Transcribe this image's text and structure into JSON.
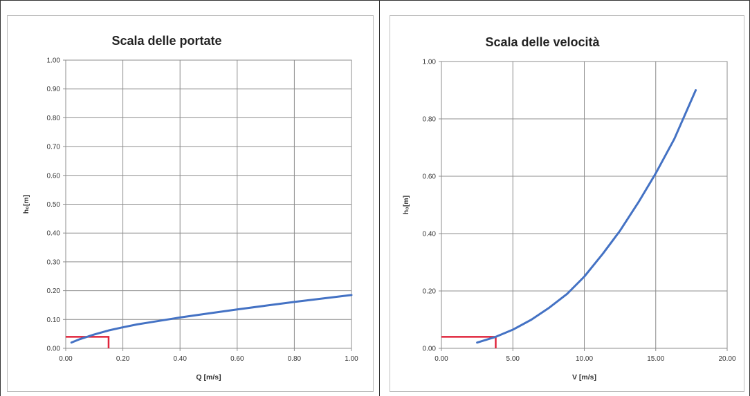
{
  "chart_data": [
    {
      "type": "line",
      "title": "Scala delle portate",
      "xlabel": "Q [m/s]",
      "ylabel": "h₀[m]",
      "xlim": [
        0,
        1.0
      ],
      "ylim": [
        0,
        1.0
      ],
      "xticks": [
        "0.00",
        "0.20",
        "0.40",
        "0.60",
        "0.80",
        "1.00"
      ],
      "yticks": [
        "0.00",
        "0.10",
        "0.20",
        "0.30",
        "0.40",
        "0.50",
        "0.60",
        "0.70",
        "0.80",
        "0.90",
        "1.00"
      ],
      "grid": true,
      "series": [
        {
          "color": "#4472C4",
          "x": [
            0.02,
            0.05,
            0.1,
            0.15,
            0.2,
            0.25,
            0.3,
            0.4,
            0.5,
            0.6,
            0.7,
            0.8,
            0.9,
            1.0
          ],
          "y": [
            0.02,
            0.032,
            0.048,
            0.062,
            0.073,
            0.083,
            0.091,
            0.107,
            0.121,
            0.135,
            0.148,
            0.161,
            0.173,
            0.185
          ]
        }
      ],
      "marker": {
        "color": "#E0243B",
        "x": 0.15,
        "y": 0.04
      }
    },
    {
      "type": "line",
      "title": "Scala delle velocità",
      "xlabel": "V [m/s]",
      "ylabel": "h₀[m]",
      "xlim": [
        0,
        20.0
      ],
      "ylim": [
        0,
        1.0
      ],
      "xticks": [
        "0.00",
        "5.00",
        "10.00",
        "15.00",
        "20.00"
      ],
      "yticks": [
        "0.00",
        "0.20",
        "0.40",
        "0.60",
        "0.80",
        "1.00"
      ],
      "grid": true,
      "series": [
        {
          "color": "#4472C4",
          "x": [
            2.5,
            3.8,
            5.0,
            6.3,
            7.5,
            8.8,
            10.0,
            11.3,
            12.5,
            13.8,
            15.0,
            16.3,
            17.8
          ],
          "y": [
            0.02,
            0.04,
            0.065,
            0.1,
            0.14,
            0.19,
            0.25,
            0.33,
            0.41,
            0.51,
            0.61,
            0.73,
            0.9
          ]
        }
      ],
      "marker": {
        "color": "#E0243B",
        "x": 3.8,
        "y": 0.04
      }
    }
  ]
}
